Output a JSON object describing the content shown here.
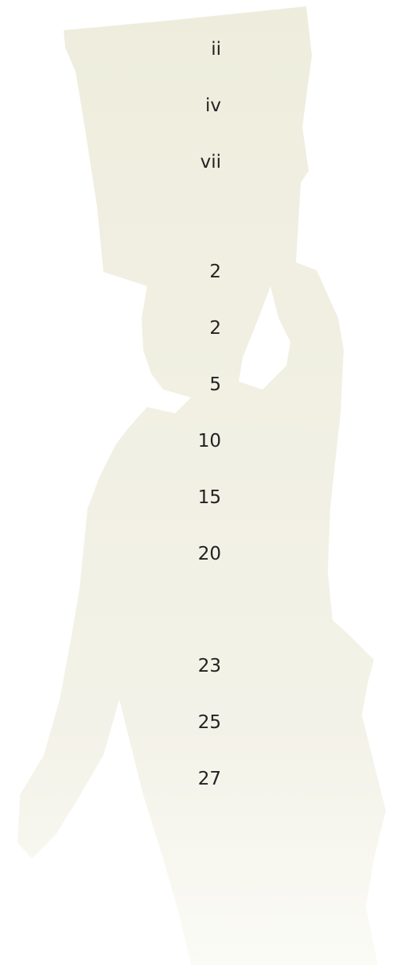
{
  "toc": {
    "groups": [
      {
        "pages": [
          "ii",
          "iv",
          "vii"
        ]
      },
      {
        "pages": [
          "2",
          "2",
          "5",
          "10",
          "15",
          "20"
        ]
      },
      {
        "pages": [
          "23",
          "25",
          "27"
        ]
      }
    ]
  }
}
